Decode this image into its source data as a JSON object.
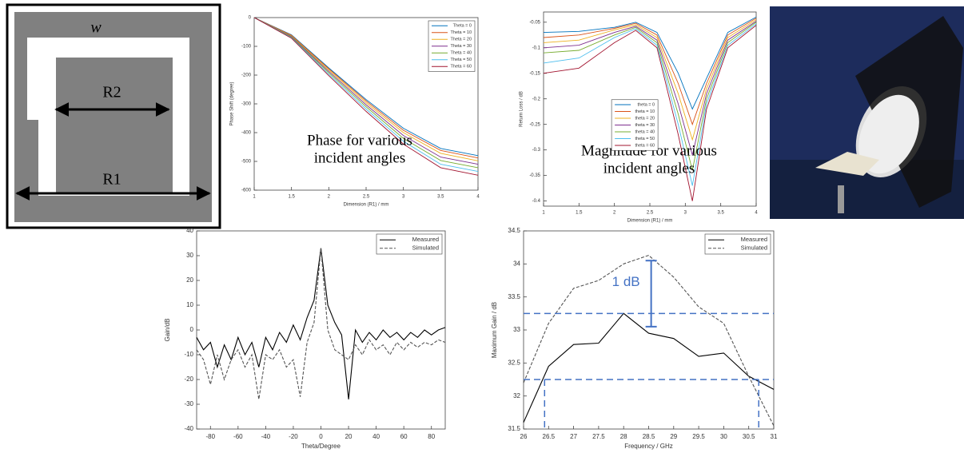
{
  "diagram": {
    "labels": {
      "w": "w",
      "r2": "R2",
      "r1": "R1"
    }
  },
  "chart_data": [
    {
      "type": "line",
      "ylabel": "Phase Shift (degree)",
      "xlabel": "Dimension (R1) / mm",
      "annotation": [
        "Phase for various",
        "incident angles"
      ],
      "x": [
        1,
        1.5,
        2,
        2.5,
        3,
        3.5,
        4
      ],
      "series": [
        {
          "name": "Theta = 0",
          "color": "#0072bd",
          "values": [
            0,
            -60,
            -175,
            -285,
            -385,
            -455,
            -480
          ]
        },
        {
          "name": "Theta = 10",
          "color": "#d95319",
          "values": [
            0,
            -62,
            -178,
            -290,
            -392,
            -462,
            -488
          ]
        },
        {
          "name": "Theta = 20",
          "color": "#edb120",
          "values": [
            0,
            -64,
            -182,
            -296,
            -400,
            -472,
            -498
          ]
        },
        {
          "name": "Theta = 30",
          "color": "#7e2f8e",
          "values": [
            0,
            -66,
            -187,
            -303,
            -410,
            -485,
            -510
          ]
        },
        {
          "name": "Theta = 40",
          "color": "#77ac30",
          "values": [
            0,
            -68,
            -192,
            -310,
            -420,
            -497,
            -522
          ]
        },
        {
          "name": "Theta = 50",
          "color": "#4dbeee",
          "values": [
            0,
            -70,
            -197,
            -318,
            -430,
            -510,
            -535
          ]
        },
        {
          "name": "Theta = 60",
          "color": "#a2142f",
          "values": [
            0,
            -72,
            -202,
            -326,
            -440,
            -522,
            -548
          ]
        }
      ],
      "xlim": [
        1,
        4
      ],
      "xticks": [
        1,
        1.5,
        2,
        2.5,
        3,
        3.5,
        4
      ],
      "ylim": [
        -600,
        0
      ],
      "yticks": [
        0,
        -100,
        -200,
        -300,
        -400,
        -500,
        -600
      ],
      "legend": "upper right"
    },
    {
      "type": "line",
      "ylabel": "Return Loss / dB",
      "xlabel": "Dimension (R1) / mm",
      "annotation": [
        "Magnitude for various",
        "incident angles"
      ],
      "x": [
        1,
        1.5,
        2,
        2.3,
        2.6,
        2.9,
        3.1,
        3.3,
        3.6,
        4
      ],
      "series": [
        {
          "name": "theta = 0",
          "color": "#0072bd",
          "values": [
            -0.07,
            -0.068,
            -0.06,
            -0.05,
            -0.07,
            -0.15,
            -0.22,
            -0.16,
            -0.07,
            -0.04
          ]
        },
        {
          "name": "theta = 10",
          "color": "#d95319",
          "values": [
            -0.08,
            -0.075,
            -0.062,
            -0.052,
            -0.075,
            -0.17,
            -0.25,
            -0.17,
            -0.075,
            -0.042
          ]
        },
        {
          "name": "theta = 20",
          "color": "#edb120",
          "values": [
            -0.09,
            -0.085,
            -0.065,
            -0.055,
            -0.08,
            -0.19,
            -0.28,
            -0.18,
            -0.08,
            -0.045
          ]
        },
        {
          "name": "theta = 30",
          "color": "#7e2f8e",
          "values": [
            -0.1,
            -0.095,
            -0.07,
            -0.058,
            -0.085,
            -0.21,
            -0.31,
            -0.19,
            -0.085,
            -0.048
          ]
        },
        {
          "name": "theta = 40",
          "color": "#77ac30",
          "values": [
            -0.11,
            -0.105,
            -0.075,
            -0.06,
            -0.09,
            -0.23,
            -0.34,
            -0.2,
            -0.09,
            -0.05
          ]
        },
        {
          "name": "theta = 50",
          "color": "#4dbeee",
          "values": [
            -0.13,
            -0.12,
            -0.08,
            -0.063,
            -0.095,
            -0.25,
            -0.37,
            -0.21,
            -0.095,
            -0.053
          ]
        },
        {
          "name": "theta = 60",
          "color": "#a2142f",
          "values": [
            -0.15,
            -0.14,
            -0.09,
            -0.066,
            -0.1,
            -0.27,
            -0.4,
            -0.22,
            -0.1,
            -0.056
          ]
        }
      ],
      "xlim": [
        1,
        4
      ],
      "xticks": [
        1,
        1.5,
        2,
        2.5,
        3,
        3.5,
        4
      ],
      "ylim": [
        -0.41,
        -0.03
      ],
      "yticks": [
        -0.05,
        -0.1,
        -0.15,
        -0.2,
        -0.25,
        -0.3,
        -0.35,
        -0.4
      ],
      "legend": "center left"
    },
    {
      "type": "line",
      "ylabel": "Gain/dB",
      "xlabel": "Theta/Degree",
      "x": [
        -90,
        -85,
        -80,
        -75,
        -70,
        -65,
        -60,
        -55,
        -50,
        -45,
        -40,
        -35,
        -30,
        -25,
        -20,
        -15,
        -10,
        -5,
        0,
        5,
        10,
        15,
        20,
        25,
        30,
        35,
        40,
        45,
        50,
        55,
        60,
        65,
        70,
        75,
        80,
        85,
        90
      ],
      "series": [
        {
          "name": "Measured",
          "color": "#000000",
          "linestyle": "solid",
          "values": [
            -3,
            -8,
            -5,
            -15,
            -6,
            -12,
            -3,
            -10,
            -5,
            -15,
            -3,
            -8,
            -1,
            -5,
            2,
            -4,
            5,
            12,
            33,
            10,
            3,
            -2,
            -28,
            0,
            -5,
            -1,
            -4,
            0,
            -3,
            -1,
            -4,
            -1,
            -3,
            0,
            -2,
            0,
            1
          ]
        },
        {
          "name": "Simulated",
          "color": "#555555",
          "linestyle": "dashed",
          "values": [
            -8,
            -12,
            -22,
            -10,
            -20,
            -12,
            -8,
            -15,
            -10,
            -28,
            -10,
            -12,
            -8,
            -15,
            -12,
            -27,
            -5,
            3,
            33,
            0,
            -8,
            -10,
            -12,
            -6,
            -10,
            -4,
            -8,
            -6,
            -10,
            -5,
            -8,
            -5,
            -7,
            -5,
            -6,
            -4,
            -5
          ]
        }
      ],
      "xlim": [
        -90,
        90
      ],
      "xticks": [
        -80,
        -60,
        -40,
        -20,
        0,
        20,
        40,
        60,
        80
      ],
      "ylim": [
        -40,
        40
      ],
      "yticks": [
        -40,
        -30,
        -20,
        -10,
        0,
        10,
        20,
        30,
        40
      ],
      "legend": "upper right"
    },
    {
      "type": "line",
      "ylabel": "Maximum Gain / dB",
      "xlabel": "Frequency / GHz",
      "x": [
        26,
        26.5,
        27,
        27.5,
        28,
        28.5,
        29,
        29.5,
        30,
        30.5,
        31
      ],
      "series": [
        {
          "name": "Measured",
          "color": "#000000",
          "linestyle": "solid",
          "values": [
            31.6,
            32.45,
            32.78,
            32.8,
            33.25,
            32.95,
            32.87,
            32.6,
            32.65,
            32.3,
            32.1
          ]
        },
        {
          "name": "Simulated",
          "color": "#555555",
          "linestyle": "dashed",
          "values": [
            32.2,
            33.1,
            33.63,
            33.75,
            34.0,
            34.13,
            33.8,
            33.35,
            33.1,
            32.3,
            31.55
          ]
        }
      ],
      "xlim": [
        26,
        31
      ],
      "xticks": [
        26,
        26.5,
        27,
        27.5,
        28,
        28.5,
        29,
        29.5,
        30,
        30.5,
        31
      ],
      "ylim": [
        31.5,
        34.5
      ],
      "yticks": [
        31.5,
        32,
        32.5,
        33,
        33.5,
        34,
        34.5
      ],
      "legend": "upper right",
      "hlines": [
        33.25,
        32.25
      ],
      "vlines": [
        26.42,
        30.7
      ],
      "ref_color": "#4472c4",
      "bracket": {
        "x": 28.55,
        "from": 33.05,
        "to": 34.05,
        "label": "1 dB"
      }
    }
  ]
}
